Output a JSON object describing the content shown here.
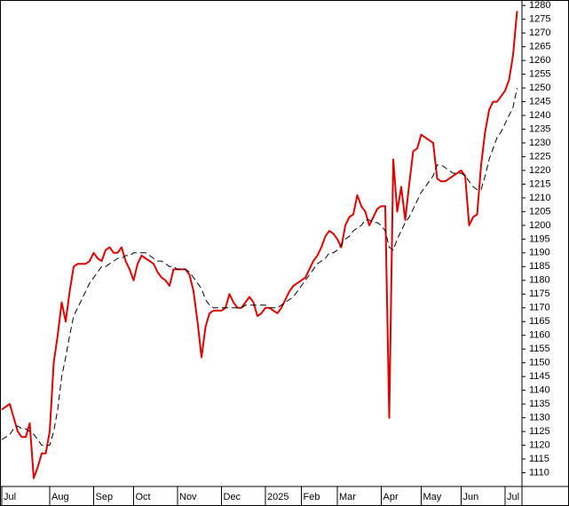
{
  "chart_data": {
    "type": "line",
    "categories": [
      "Jul",
      null,
      null,
      null,
      null,
      null,
      null,
      null,
      null,
      null,
      null,
      null,
      "Aug",
      null,
      null,
      null,
      null,
      null,
      null,
      null,
      null,
      null,
      null,
      "Sep",
      null,
      null,
      null,
      null,
      null,
      null,
      null,
      null,
      null,
      "Oct",
      null,
      null,
      null,
      null,
      null,
      null,
      null,
      null,
      null,
      null,
      "Nov",
      null,
      null,
      null,
      null,
      null,
      null,
      null,
      null,
      null,
      null,
      "Dec",
      null,
      null,
      null,
      null,
      null,
      null,
      null,
      null,
      null,
      null,
      "2025",
      null,
      null,
      null,
      null,
      null,
      null,
      null,
      null,
      "Feb",
      null,
      null,
      null,
      null,
      null,
      null,
      null,
      null,
      "Mar",
      null,
      null,
      null,
      null,
      null,
      null,
      null,
      null,
      null,
      null,
      "Apr",
      null,
      null,
      null,
      null,
      null,
      null,
      null,
      null,
      null,
      "May",
      null,
      null,
      null,
      null,
      null,
      null,
      null,
      null,
      null,
      "Jun",
      null,
      null,
      null,
      null,
      null,
      null,
      null,
      null,
      null,
      null,
      "Jul",
      null,
      null,
      null
    ],
    "series": [
      {
        "color": "#e00000",
        "dash": false,
        "values": [
          1133,
          1134,
          1135,
          1130,
          1125,
          1123,
          1123,
          1128,
          1108,
          1112,
          1117,
          1117,
          1125,
          1150,
          1160,
          1172,
          1165,
          1176,
          1185,
          1186,
          1186,
          1186,
          1187,
          1190,
          1188,
          1187,
          1191,
          1192,
          1190,
          1190,
          1192,
          1187,
          1184,
          1180,
          1186,
          1189,
          1188,
          1187,
          1186,
          1183,
          1181,
          1180,
          1178,
          1184,
          1184,
          1184,
          1184,
          1182,
          1176,
          1165,
          1152,
          1163,
          1168,
          1169,
          1169,
          1169,
          1170,
          1175,
          1172,
          1170,
          1170,
          1172,
          1174,
          1172,
          1167,
          1168,
          1170,
          1170,
          1169,
          1168,
          1170,
          1173,
          1176,
          1178,
          1179,
          1180,
          1181,
          1184,
          1187,
          1189,
          1192,
          1196,
          1198,
          1197,
          1195,
          1192,
          1200,
          1203,
          1204,
          1211,
          1207,
          1205,
          1200,
          1203,
          1206,
          1207,
          1207,
          1130,
          1224,
          1205,
          1214,
          1202,
          1215,
          1227,
          1228,
          1233,
          1232,
          1231,
          1230,
          1217,
          1216,
          1216,
          1217,
          1218,
          1219,
          1220,
          1218,
          1200,
          1203,
          1204,
          1222,
          1234,
          1242,
          1245,
          1245,
          1247,
          1249,
          1253,
          1262,
          1278
        ]
      },
      {
        "color": "#000000",
        "dash": true,
        "values": [
          1122,
          1123,
          1124,
          1126,
          1127,
          1126,
          1126,
          1125,
          1124,
          1122,
          1120,
          1120,
          1120,
          1125,
          1133,
          1145,
          1152,
          1160,
          1167,
          1170,
          1173,
          1176,
          1179,
          1181,
          1183,
          1185,
          1185,
          1186,
          1187,
          1188,
          1188,
          1189,
          1189,
          1190,
          1190,
          1190,
          1190,
          1189,
          1188,
          1187,
          1187,
          1186,
          1185,
          1185,
          1184,
          1184,
          1184,
          1183,
          1181,
          1179,
          1177,
          1173,
          1171,
          1170,
          1170,
          1170,
          1170,
          1170,
          1170,
          1170,
          1170,
          1171,
          1171,
          1171,
          1171,
          1171,
          1171,
          1170,
          1170,
          1170,
          1171,
          1172,
          1173,
          1174,
          1176,
          1178,
          1180,
          1182,
          1184,
          1186,
          1187,
          1188,
          1190,
          1190,
          1191,
          1193,
          1195,
          1196,
          1198,
          1199,
          1200,
          1202,
          1202,
          1201,
          1201,
          1200,
          1198,
          1192,
          1191,
          1195,
          1198,
          1201,
          1203,
          1206,
          1209,
          1212,
          1214,
          1216,
          1218,
          1222,
          1222,
          1221,
          1220,
          1219,
          1219,
          1219,
          1218,
          1216,
          1214,
          1213,
          1213,
          1218,
          1224,
          1228,
          1232,
          1234,
          1237,
          1240,
          1243,
          1250
        ]
      }
    ],
    "ylim": [
      1105,
      1282
    ],
    "yticks": [
      1110,
      1115,
      1120,
      1125,
      1130,
      1135,
      1140,
      1145,
      1150,
      1155,
      1160,
      1165,
      1170,
      1175,
      1180,
      1185,
      1190,
      1195,
      1200,
      1205,
      1210,
      1215,
      1220,
      1225,
      1230,
      1235,
      1240,
      1245,
      1250,
      1255,
      1260,
      1265,
      1270,
      1275,
      1280
    ],
    "grid": false
  }
}
